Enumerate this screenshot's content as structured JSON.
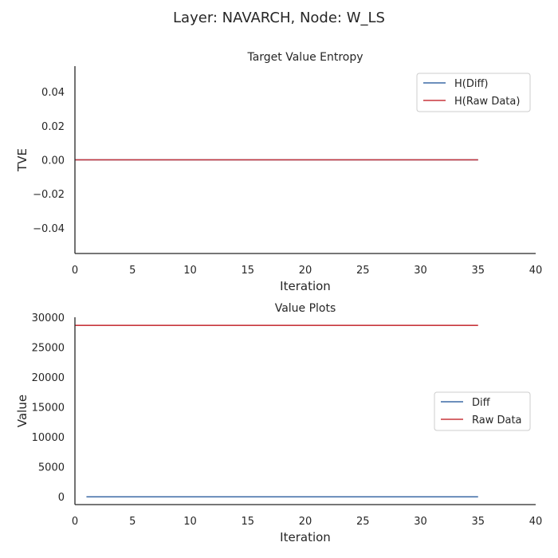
{
  "figure": {
    "suptitle": "Layer: NAVARCH, Node: W_LS"
  },
  "chart_data": [
    {
      "type": "line",
      "title": "Target Value Entropy",
      "xlabel": "Iteration",
      "ylabel": "TVE",
      "xlim": [
        0,
        40
      ],
      "ylim": [
        -0.055,
        0.055
      ],
      "xticks": [
        0,
        5,
        10,
        15,
        20,
        25,
        30,
        35,
        40
      ],
      "yticks": [
        -0.04,
        -0.02,
        0.0,
        0.02,
        0.04
      ],
      "yticklabels": [
        "−0.04",
        "−0.02",
        "0.00",
        "0.02",
        "0.04"
      ],
      "legend": "top-right",
      "grid": false,
      "series": [
        {
          "name": "H(Diff)",
          "color": "#3b6aa6",
          "x": [
            0,
            35
          ],
          "y": [
            0.0,
            0.0
          ]
        },
        {
          "name": "H(Raw Data)",
          "color": "#c8363c",
          "x": [
            0,
            35
          ],
          "y": [
            0.0,
            0.0
          ]
        }
      ]
    },
    {
      "type": "line",
      "title": "Value Plots",
      "xlabel": "Iteration",
      "ylabel": "Value",
      "xlim": [
        0,
        40
      ],
      "ylim": [
        -1300,
        30000
      ],
      "xticks": [
        0,
        5,
        10,
        15,
        20,
        25,
        30,
        35,
        40
      ],
      "yticks": [
        0,
        5000,
        10000,
        15000,
        20000,
        25000,
        30000
      ],
      "yticklabels": [
        "0",
        "5000",
        "10000",
        "15000",
        "20000",
        "25000",
        "30000"
      ],
      "legend": "center-right",
      "grid": false,
      "series": [
        {
          "name": "Diff",
          "color": "#3b6aa6",
          "x": [
            1,
            35
          ],
          "y": [
            0,
            0
          ]
        },
        {
          "name": "Raw Data",
          "color": "#c8363c",
          "x": [
            0,
            35
          ],
          "y": [
            28650,
            28650
          ]
        }
      ]
    }
  ]
}
